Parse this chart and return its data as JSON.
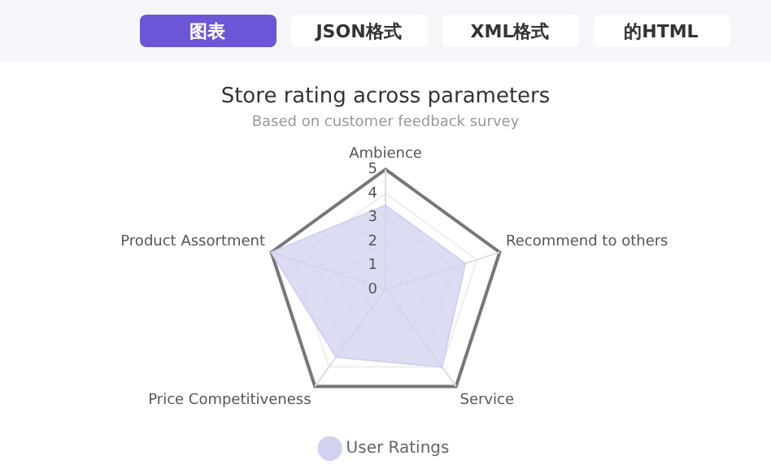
{
  "chart_data": {
    "type": "radar",
    "title": "Store rating across parameters",
    "subtitle": "Based on customer feedback survey",
    "annotations": [
      "图表",
      "JSON格式",
      "XML格式",
      "的HTML"
    ],
    "categories": [
      "Ambience",
      "Recommend to others",
      "Service",
      "Price Competitiveness",
      "Product Assortment"
    ],
    "series": [
      {
        "name": "User Ratings",
        "color": "#d0d2ef",
        "values": [
          3.5,
          3.5,
          4,
          3.5,
          5
        ]
      }
    ],
    "ylim": [
      0,
      5
    ],
    "yticks": [
      0,
      1,
      2,
      3,
      4,
      5
    ],
    "grid": true,
    "legend": "bottom",
    "marker": "none"
  }
}
